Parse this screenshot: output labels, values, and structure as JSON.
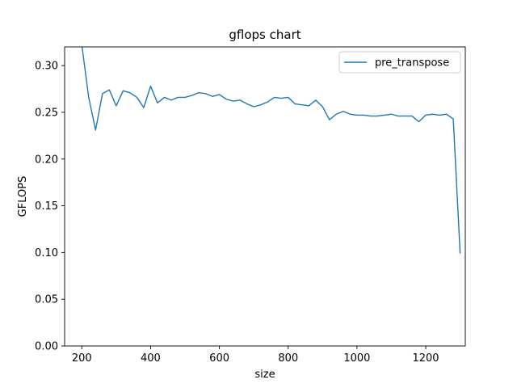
{
  "chart_data": {
    "type": "line",
    "title": "gflops chart",
    "xlabel": "size",
    "ylabel": "GFLOPS",
    "xlim": [
      150,
      1315
    ],
    "ylim": [
      0.0,
      0.32
    ],
    "xticks": [
      200,
      400,
      600,
      800,
      1000,
      1200
    ],
    "xtick_labels": [
      "200",
      "400",
      "600",
      "800",
      "1000",
      "1200"
    ],
    "yticks": [
      0.0,
      0.05,
      0.1,
      0.15,
      0.2,
      0.25,
      0.3
    ],
    "ytick_labels": [
      "0.00",
      "0.05",
      "0.10",
      "0.15",
      "0.20",
      "0.25",
      "0.30"
    ],
    "grid": false,
    "legend": "top-right",
    "series": [
      {
        "name": "pre_transpose",
        "color": "#1f77b4",
        "x": [
          200,
          220,
          240,
          260,
          280,
          300,
          320,
          340,
          360,
          380,
          400,
          420,
          440,
          460,
          480,
          500,
          520,
          540,
          560,
          580,
          600,
          620,
          640,
          660,
          680,
          700,
          720,
          740,
          760,
          780,
          800,
          820,
          840,
          860,
          880,
          900,
          920,
          940,
          960,
          980,
          1000,
          1020,
          1040,
          1060,
          1080,
          1100,
          1120,
          1140,
          1160,
          1180,
          1200,
          1220,
          1240,
          1260,
          1280,
          1300
        ],
        "y": [
          0.322,
          0.266,
          0.231,
          0.27,
          0.274,
          0.257,
          0.273,
          0.271,
          0.266,
          0.255,
          0.278,
          0.26,
          0.266,
          0.263,
          0.266,
          0.266,
          0.268,
          0.271,
          0.27,
          0.267,
          0.269,
          0.264,
          0.262,
          0.263,
          0.259,
          0.256,
          0.258,
          0.261,
          0.266,
          0.265,
          0.266,
          0.259,
          0.258,
          0.257,
          0.263,
          0.256,
          0.242,
          0.248,
          0.251,
          0.248,
          0.247,
          0.247,
          0.246,
          0.246,
          0.247,
          0.248,
          0.246,
          0.246,
          0.246,
          0.24,
          0.247,
          0.248,
          0.247,
          0.248,
          0.243,
          0.099
        ]
      }
    ]
  }
}
